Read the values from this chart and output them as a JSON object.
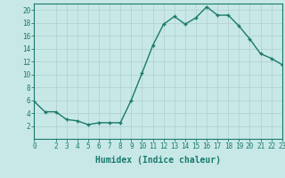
{
  "x": [
    0,
    1,
    2,
    3,
    4,
    5,
    6,
    7,
    8,
    9,
    10,
    11,
    12,
    13,
    14,
    15,
    16,
    17,
    18,
    19,
    20,
    21,
    22,
    23
  ],
  "y": [
    5.8,
    4.2,
    4.2,
    3.0,
    2.8,
    2.2,
    2.5,
    2.5,
    2.5,
    6.0,
    10.2,
    14.5,
    17.8,
    19.0,
    17.8,
    18.8,
    20.5,
    19.2,
    19.2,
    17.5,
    15.5,
    13.2,
    12.5,
    11.5
  ],
  "line_color": "#1a7a6a",
  "marker": "+",
  "bg_color": "#c8e8e8",
  "grid_color": "#b0cece",
  "xlabel": "Humidex (Indice chaleur)",
  "xlim": [
    0,
    23
  ],
  "ylim": [
    0,
    21
  ],
  "yticks": [
    2,
    4,
    6,
    8,
    10,
    12,
    14,
    16,
    18,
    20
  ],
  "xticks": [
    0,
    2,
    3,
    4,
    5,
    6,
    7,
    8,
    9,
    10,
    11,
    12,
    13,
    14,
    15,
    16,
    17,
    18,
    19,
    20,
    21,
    22,
    23
  ],
  "tick_color": "#1a7a6a",
  "axis_color": "#1a7a6a",
  "tick_fontsize": 5.5,
  "xlabel_fontsize": 7
}
